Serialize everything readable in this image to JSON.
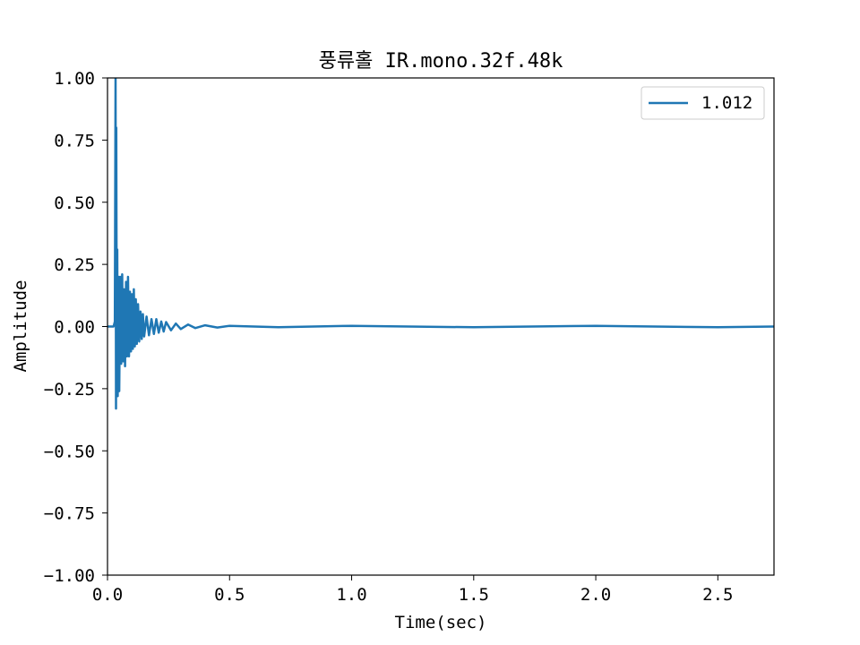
{
  "chart_data": {
    "type": "line",
    "title": "풍류홀 IR.mono.32f.48k",
    "xlabel": "Time(sec)",
    "ylabel": "Amplitude",
    "xlim": [
      0,
      2.73
    ],
    "ylim": [
      -1.0,
      1.0
    ],
    "x_ticks": [
      0.0,
      0.5,
      1.0,
      1.5,
      2.0,
      2.5
    ],
    "x_tick_labels": [
      "0.0",
      "0.5",
      "1.0",
      "1.5",
      "2.0",
      "2.5"
    ],
    "y_ticks": [
      1.0,
      0.75,
      0.5,
      0.25,
      0.0,
      -0.25,
      -0.5,
      -0.75,
      -1.0
    ],
    "y_tick_labels": [
      "1.00",
      "0.75",
      "0.50",
      "0.25",
      "0.00",
      "−0.25",
      "−0.50",
      "−0.75",
      "−1.00"
    ],
    "grid": false,
    "legend": "top-right",
    "series": [
      {
        "name": "1.012",
        "color": "#1f77b4",
        "x": [
          0.0,
          0.025,
          0.03,
          0.033,
          0.035,
          0.036,
          0.038,
          0.04,
          0.042,
          0.045,
          0.048,
          0.052,
          0.056,
          0.06,
          0.064,
          0.068,
          0.072,
          0.076,
          0.08,
          0.084,
          0.088,
          0.092,
          0.096,
          0.1,
          0.104,
          0.108,
          0.112,
          0.116,
          0.12,
          0.125,
          0.13,
          0.135,
          0.14,
          0.145,
          0.15,
          0.16,
          0.17,
          0.18,
          0.19,
          0.2,
          0.21,
          0.22,
          0.23,
          0.24,
          0.26,
          0.28,
          0.3,
          0.33,
          0.36,
          0.4,
          0.45,
          0.5,
          0.7,
          1.0,
          1.5,
          2.0,
          2.5,
          2.73
        ],
        "y": [
          0.0,
          0.0,
          0.02,
          1.0,
          -0.33,
          0.8,
          -0.25,
          0.31,
          -0.28,
          0.2,
          -0.26,
          0.2,
          -0.15,
          0.21,
          -0.14,
          0.15,
          -0.16,
          0.18,
          -0.12,
          0.2,
          -0.12,
          0.14,
          -0.1,
          0.13,
          -0.09,
          0.15,
          -0.08,
          0.11,
          -0.07,
          0.09,
          -0.06,
          0.06,
          -0.05,
          0.05,
          -0.04,
          0.04,
          -0.035,
          0.03,
          -0.03,
          0.03,
          -0.025,
          0.02,
          -0.02,
          0.018,
          -0.015,
          0.012,
          -0.01,
          0.008,
          -0.006,
          0.005,
          -0.004,
          0.003,
          -0.003,
          0.003,
          -0.003,
          0.003,
          -0.003,
          0.0
        ]
      }
    ]
  }
}
